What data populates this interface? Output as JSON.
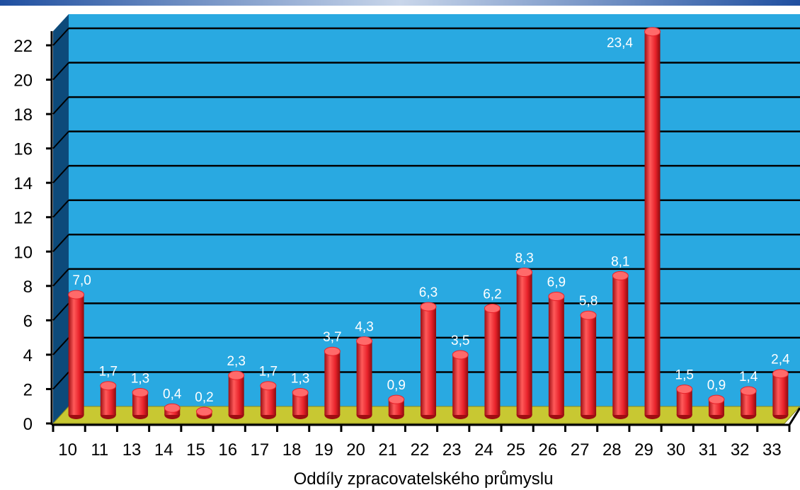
{
  "chart_data": {
    "type": "bar",
    "title": "",
    "xlabel": "Oddíly zpracovatelského průmyslu",
    "ylabel": "",
    "ylim": [
      0,
      22
    ],
    "yticks": [
      0,
      2,
      4,
      6,
      8,
      10,
      12,
      14,
      16,
      18,
      20,
      22
    ],
    "grid": true,
    "legend": "none",
    "three_d": true,
    "categories": [
      "10",
      "11",
      "13",
      "14",
      "15",
      "16",
      "17",
      "18",
      "19",
      "20",
      "21",
      "22",
      "23",
      "24",
      "25",
      "26",
      "27",
      "28",
      "29",
      "30",
      "31",
      "32",
      "33"
    ],
    "values": [
      7.0,
      1.7,
      1.3,
      0.4,
      0.2,
      2.3,
      1.7,
      1.3,
      3.7,
      4.3,
      0.9,
      6.3,
      3.5,
      6.2,
      8.3,
      6.9,
      5.8,
      8.1,
      23.4,
      1.5,
      0.9,
      1.4,
      2.4
    ],
    "value_labels": [
      "7,0",
      "1,7",
      "1,3",
      "0,4",
      "0,2",
      "2,3",
      "1,7",
      "1,3",
      "3,7",
      "4,3",
      "0,9",
      "6,3",
      "3,5",
      "6,2",
      "8,3",
      "6,9",
      "5,8",
      "8,1",
      "23,4",
      "1,5",
      "0,9",
      "1,4",
      "2,4"
    ],
    "colors": {
      "plot_background": "#29a9e1",
      "side_wall": "#0d4a7a",
      "floor": "#c8c832",
      "floor_edge": "#8a8a1e",
      "bar": "#e8222a",
      "bar_dark": "#9e0d12",
      "bar_light": "#ff6a6a",
      "gridline": "#000000",
      "label_text": "#ffffff",
      "axis_text": "#000000",
      "top_banner": "#1f4fa0"
    }
  }
}
